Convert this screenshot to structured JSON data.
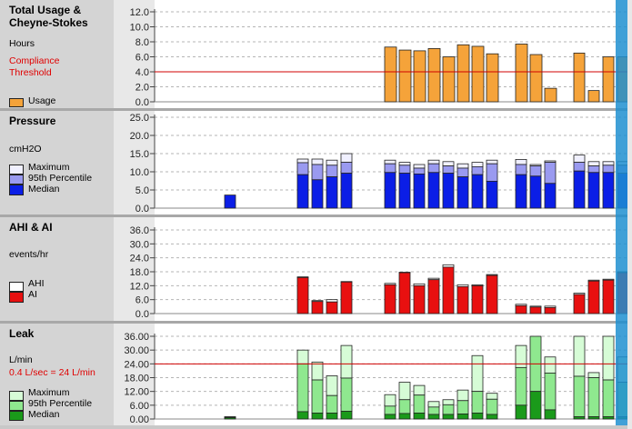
{
  "panels": [
    {
      "id": "usage",
      "title": "Total Usage & Cheyne-Stokes",
      "unit": "Hours",
      "threshold_label": "Compliance Threshold",
      "legend": [
        "Usage"
      ],
      "ticks": [
        "12.0",
        "10.0",
        "8.0",
        "6.0",
        "4.0",
        "2.0",
        "0.0"
      ],
      "ymax": 12,
      "threshold": 4.0,
      "colors": {
        "bar": "#f5a33a",
        "threshold": "#d00000"
      }
    },
    {
      "id": "pressure",
      "title": "Pressure",
      "unit": "cmH2O",
      "legend": [
        "Maximum",
        "95th Percentile",
        "Median"
      ],
      "ticks": [
        "25.0",
        "20.0",
        "15.0",
        "10.0",
        "5.0",
        "0.0"
      ],
      "ymax": 25,
      "colors": {
        "max": "#f0f0ff",
        "p95": "#9a9af0",
        "median": "#0b1ee6"
      }
    },
    {
      "id": "ahi",
      "title": "AHI & AI",
      "unit": "events/hr",
      "legend": [
        "AHI",
        "AI"
      ],
      "ticks": [
        "36.0",
        "30.0",
        "24.0",
        "18.0",
        "12.0",
        "6.0",
        "0.0"
      ],
      "ymax": 36,
      "colors": {
        "ahi": "#ffffff",
        "ai": "#e81010"
      }
    },
    {
      "id": "leak",
      "title": "Leak",
      "unit": "L/min",
      "threshold_label": "0.4 L/sec = 24 L/min",
      "legend": [
        "Maximum",
        "95th Percentile",
        "Median"
      ],
      "ticks": [
        "36.00",
        "30.00",
        "24.00",
        "18.00",
        "12.00",
        "6.00",
        "0.00"
      ],
      "ymax": 36,
      "threshold": 24,
      "colors": {
        "max": "#d6fcd6",
        "p95": "#8fe88f",
        "median": "#1a9a1a",
        "threshold": "#d00000"
      }
    }
  ],
  "chart_data": [
    {
      "type": "bar",
      "title": "Total Usage & Cheyne-Stokes",
      "ylabel": "Hours",
      "ylim": [
        0,
        12
      ],
      "series": [
        {
          "name": "Usage",
          "values": [
            {
              "x": 423,
              "w": 13,
              "v": 7.3
            },
            {
              "x": 439,
              "w": 13,
              "v": 6.9
            },
            {
              "x": 455,
              "w": 13,
              "v": 6.8
            },
            {
              "x": 471,
              "w": 13,
              "v": 7.1
            },
            {
              "x": 487,
              "w": 13,
              "v": 6.0
            },
            {
              "x": 503,
              "w": 13,
              "v": 7.6
            },
            {
              "x": 519,
              "w": 13,
              "v": 7.4
            },
            {
              "x": 535,
              "w": 13,
              "v": 6.4
            },
            {
              "x": 567,
              "w": 13,
              "v": 7.7
            },
            {
              "x": 583,
              "w": 13,
              "v": 6.3
            },
            {
              "x": 599,
              "w": 13,
              "v": 1.8
            },
            {
              "x": 631,
              "w": 12,
              "v": 6.5
            },
            {
              "x": 647,
              "w": 12,
              "v": 1.5
            },
            {
              "x": 663,
              "w": 12,
              "v": 6.0
            },
            {
              "x": 679,
              "w": 12,
              "v": 6.0
            }
          ]
        }
      ],
      "threshold": 4.0
    },
    {
      "type": "bar",
      "title": "Pressure",
      "ylabel": "cmH2O",
      "ylim": [
        0,
        25
      ],
      "bars": [
        {
          "x": 247,
          "w": 12,
          "median": 3.6,
          "p95": 3.6,
          "max": 3.6
        },
        {
          "x": 327,
          "w": 12,
          "median": 9.2,
          "p95": 12.5,
          "max": 13.5
        },
        {
          "x": 343,
          "w": 12,
          "median": 7.8,
          "p95": 12.0,
          "max": 13.5
        },
        {
          "x": 359,
          "w": 12,
          "median": 8.6,
          "p95": 11.8,
          "max": 13.2
        },
        {
          "x": 375,
          "w": 12,
          "median": 9.6,
          "p95": 12.6,
          "max": 15.0
        },
        {
          "x": 423,
          "w": 12,
          "median": 9.8,
          "p95": 12.2,
          "max": 13.2
        },
        {
          "x": 439,
          "w": 12,
          "median": 9.6,
          "p95": 11.8,
          "max": 12.6
        },
        {
          "x": 455,
          "w": 12,
          "median": 9.4,
          "p95": 11.0,
          "max": 12.0
        },
        {
          "x": 471,
          "w": 12,
          "median": 9.8,
          "p95": 12.2,
          "max": 13.2
        },
        {
          "x": 487,
          "w": 12,
          "median": 9.6,
          "p95": 11.6,
          "max": 12.8
        },
        {
          "x": 503,
          "w": 12,
          "median": 8.6,
          "p95": 11.0,
          "max": 12.2
        },
        {
          "x": 519,
          "w": 12,
          "median": 9.2,
          "p95": 11.4,
          "max": 12.6
        },
        {
          "x": 535,
          "w": 12,
          "median": 7.4,
          "p95": 12.2,
          "max": 13.2
        },
        {
          "x": 567,
          "w": 12,
          "median": 9.2,
          "p95": 12.0,
          "max": 13.4
        },
        {
          "x": 583,
          "w": 12,
          "median": 8.8,
          "p95": 11.6,
          "max": 12.0
        },
        {
          "x": 599,
          "w": 12,
          "median": 6.8,
          "p95": 12.6,
          "max": 13.0
        },
        {
          "x": 631,
          "w": 12,
          "median": 10.2,
          "p95": 12.6,
          "max": 14.6
        },
        {
          "x": 647,
          "w": 12,
          "median": 9.8,
          "p95": 11.6,
          "max": 12.8
        },
        {
          "x": 663,
          "w": 12,
          "median": 9.8,
          "p95": 11.8,
          "max": 12.8
        },
        {
          "x": 679,
          "w": 12,
          "median": 9.6,
          "p95": 11.8,
          "max": 12.8
        }
      ]
    },
    {
      "type": "bar",
      "title": "AHI & AI",
      "ylabel": "events/hr",
      "ylim": [
        0,
        36
      ],
      "bars": [
        {
          "x": 327,
          "w": 12,
          "ai": 15.5,
          "ahi": 15.8
        },
        {
          "x": 343,
          "w": 12,
          "ai": 5.2,
          "ahi": 5.6
        },
        {
          "x": 359,
          "w": 12,
          "ai": 5.0,
          "ahi": 6.0
        },
        {
          "x": 375,
          "w": 12,
          "ai": 13.6,
          "ahi": 13.8
        },
        {
          "x": 423,
          "w": 12,
          "ai": 12.4,
          "ahi": 13.0
        },
        {
          "x": 439,
          "w": 12,
          "ai": 17.6,
          "ahi": 17.8
        },
        {
          "x": 455,
          "w": 12,
          "ai": 12.0,
          "ahi": 12.8
        },
        {
          "x": 471,
          "w": 12,
          "ai": 14.6,
          "ahi": 15.2
        },
        {
          "x": 487,
          "w": 12,
          "ai": 20.0,
          "ahi": 21.0
        },
        {
          "x": 503,
          "w": 12,
          "ai": 11.6,
          "ahi": 12.4
        },
        {
          "x": 519,
          "w": 12,
          "ai": 12.0,
          "ahi": 12.4
        },
        {
          "x": 535,
          "w": 12,
          "ai": 16.4,
          "ahi": 16.8
        },
        {
          "x": 567,
          "w": 12,
          "ai": 3.4,
          "ahi": 4.0
        },
        {
          "x": 583,
          "w": 12,
          "ai": 2.8,
          "ahi": 3.2
        },
        {
          "x": 599,
          "w": 12,
          "ai": 2.6,
          "ahi": 3.2
        },
        {
          "x": 631,
          "w": 12,
          "ai": 8.2,
          "ahi": 8.8
        },
        {
          "x": 647,
          "w": 12,
          "ai": 14.0,
          "ahi": 14.4
        },
        {
          "x": 663,
          "w": 12,
          "ai": 14.4,
          "ahi": 14.8
        },
        {
          "x": 679,
          "w": 12,
          "ai": 17.6,
          "ahi": 18.0
        }
      ]
    },
    {
      "type": "bar",
      "title": "Leak",
      "ylabel": "L/min",
      "ylim": [
        0,
        36
      ],
      "threshold": 24,
      "bars": [
        {
          "x": 247,
          "w": 12,
          "median": 0.6,
          "p95": 0.8,
          "max": 1.0
        },
        {
          "x": 327,
          "w": 12,
          "median": 3.2,
          "p95": 24.0,
          "max": 30.0
        },
        {
          "x": 343,
          "w": 12,
          "median": 2.6,
          "p95": 17.0,
          "max": 24.8
        },
        {
          "x": 359,
          "w": 12,
          "median": 2.6,
          "p95": 10.2,
          "max": 18.8
        },
        {
          "x": 375,
          "w": 12,
          "median": 3.4,
          "p95": 17.8,
          "max": 32.0
        },
        {
          "x": 423,
          "w": 12,
          "median": 2.0,
          "p95": 5.6,
          "max": 10.6
        },
        {
          "x": 439,
          "w": 12,
          "median": 2.4,
          "p95": 8.4,
          "max": 16.0
        },
        {
          "x": 455,
          "w": 12,
          "median": 2.6,
          "p95": 10.4,
          "max": 14.6
        },
        {
          "x": 471,
          "w": 12,
          "median": 2.0,
          "p95": 5.2,
          "max": 7.6
        },
        {
          "x": 487,
          "w": 12,
          "median": 2.0,
          "p95": 6.2,
          "max": 8.4
        },
        {
          "x": 503,
          "w": 12,
          "median": 2.2,
          "p95": 8.0,
          "max": 12.6
        },
        {
          "x": 519,
          "w": 12,
          "median": 2.6,
          "p95": 12.0,
          "max": 27.6
        },
        {
          "x": 535,
          "w": 12,
          "median": 2.0,
          "p95": 8.6,
          "max": 11.2
        },
        {
          "x": 567,
          "w": 12,
          "median": 6.0,
          "p95": 22.4,
          "max": 32.0
        },
        {
          "x": 583,
          "w": 12,
          "median": 12.0,
          "p95": 36.0,
          "max": 36.0
        },
        {
          "x": 599,
          "w": 12,
          "median": 4.0,
          "p95": 20.0,
          "max": 27.0
        },
        {
          "x": 631,
          "w": 12,
          "median": 1.0,
          "p95": 18.6,
          "max": 36.0
        },
        {
          "x": 647,
          "w": 12,
          "median": 1.0,
          "p95": 18.0,
          "max": 20.2
        },
        {
          "x": 663,
          "w": 12,
          "median": 1.0,
          "p95": 17.0,
          "max": 36.0
        },
        {
          "x": 679,
          "w": 12,
          "median": 1.0,
          "p95": 16.0,
          "max": 27.0
        }
      ]
    }
  ]
}
